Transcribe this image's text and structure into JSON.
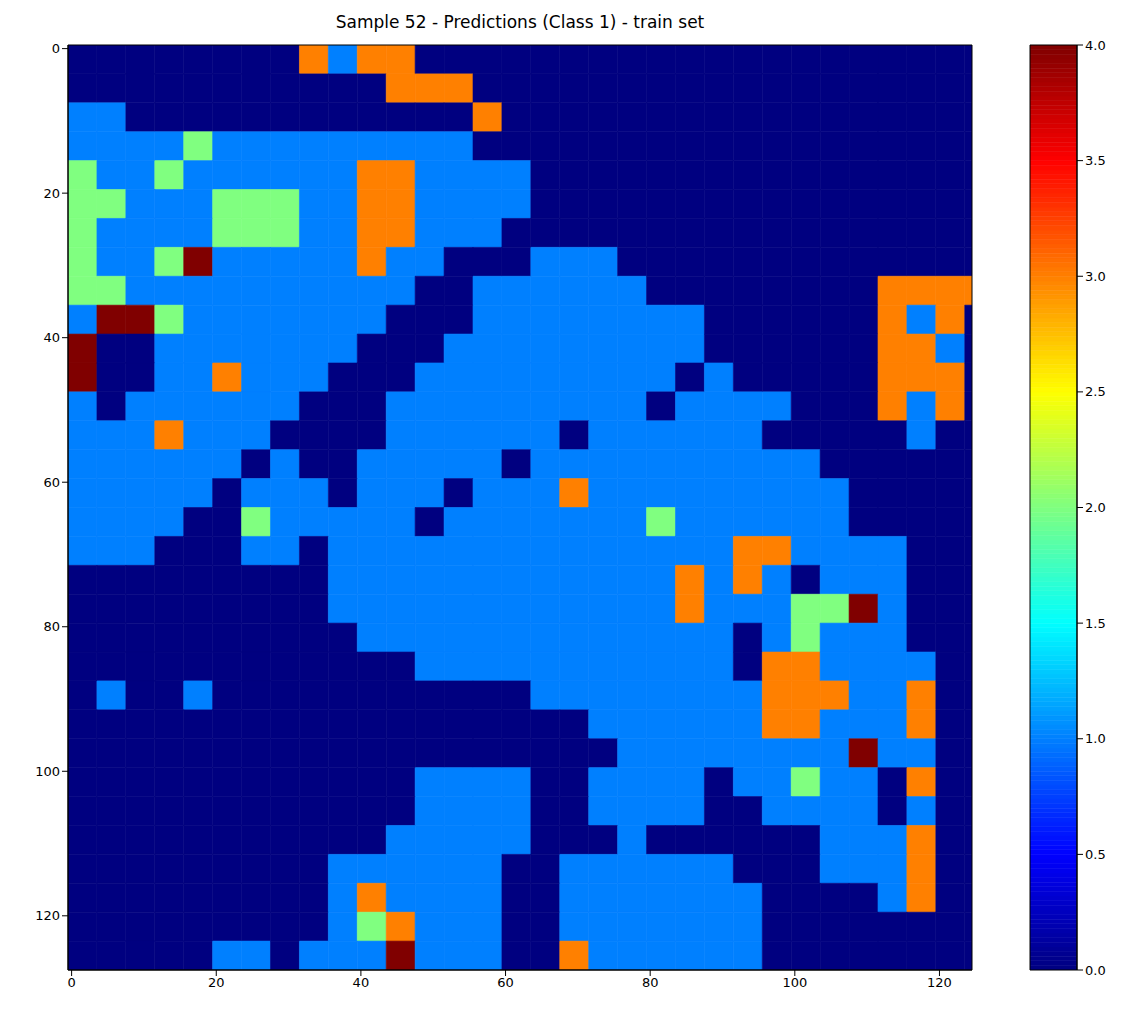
{
  "chart_data": {
    "type": "heatmap",
    "title": "Sample 52 - Predictions (Class 1) - train set",
    "x": [
      0,
      4,
      8,
      12,
      16,
      20,
      24,
      28,
      32,
      36,
      40,
      44,
      48,
      52,
      56,
      60,
      64,
      68,
      72,
      76,
      80,
      84,
      88,
      92,
      96,
      100,
      104,
      108,
      112,
      116,
      120,
      124
    ],
    "y": [
      0,
      4,
      8,
      12,
      16,
      20,
      24,
      28,
      32,
      36,
      40,
      44,
      48,
      52,
      56,
      60,
      64,
      68,
      72,
      76,
      80,
      84,
      88,
      92,
      96,
      100,
      104,
      108,
      112,
      116,
      120,
      124
    ],
    "xlim": [
      -0.5,
      124.5
    ],
    "ylim": [
      127.5,
      -0.5
    ],
    "xticks": [
      0,
      20,
      40,
      60,
      80,
      100,
      120
    ],
    "yticks": [
      0,
      20,
      40,
      60,
      80,
      100,
      120
    ],
    "cells": [
      [
        0,
        0,
        0,
        0,
        0,
        0,
        0,
        0,
        3,
        1,
        3,
        3,
        0,
        0,
        0,
        0,
        0,
        0,
        0,
        0,
        0,
        0,
        0,
        0,
        0,
        0,
        0,
        0,
        0,
        0,
        0,
        0
      ],
      [
        0,
        0,
        0,
        0,
        0,
        0,
        0,
        0,
        0,
        0,
        0,
        3,
        3,
        3,
        0,
        0,
        0,
        0,
        0,
        0,
        0,
        0,
        0,
        0,
        0,
        0,
        0,
        0,
        0,
        0,
        0,
        0
      ],
      [
        1,
        1,
        0,
        0,
        0,
        0,
        0,
        0,
        0,
        0,
        0,
        0,
        0,
        0,
        3,
        0,
        0,
        0,
        0,
        0,
        0,
        0,
        0,
        0,
        0,
        0,
        0,
        0,
        0,
        0,
        0,
        0
      ],
      [
        1,
        1,
        1,
        1,
        2,
        1,
        1,
        1,
        1,
        1,
        1,
        1,
        1,
        1,
        0,
        0,
        0,
        0,
        0,
        0,
        0,
        0,
        0,
        0,
        0,
        0,
        0,
        0,
        0,
        0,
        0,
        0
      ],
      [
        2,
        1,
        1,
        2,
        1,
        1,
        1,
        1,
        1,
        1,
        3,
        3,
        1,
        1,
        1,
        1,
        0,
        0,
        0,
        0,
        0,
        0,
        0,
        0,
        0,
        0,
        0,
        0,
        0,
        0,
        0,
        0
      ],
      [
        2,
        2,
        1,
        1,
        1,
        2,
        2,
        2,
        1,
        1,
        3,
        3,
        1,
        1,
        1,
        1,
        0,
        0,
        0,
        0,
        0,
        0,
        0,
        0,
        0,
        0,
        0,
        0,
        0,
        0,
        0,
        0
      ],
      [
        2,
        1,
        1,
        1,
        1,
        2,
        2,
        2,
        1,
        1,
        3,
        3,
        1,
        1,
        1,
        0,
        0,
        0,
        0,
        0,
        0,
        0,
        0,
        0,
        0,
        0,
        0,
        0,
        0,
        0,
        0,
        0
      ],
      [
        2,
        1,
        1,
        2,
        4,
        1,
        1,
        1,
        1,
        1,
        3,
        1,
        1,
        0,
        0,
        0,
        1,
        1,
        1,
        0,
        0,
        0,
        0,
        0,
        0,
        0,
        0,
        0,
        0,
        0,
        0,
        0
      ],
      [
        2,
        2,
        1,
        1,
        1,
        1,
        1,
        1,
        1,
        1,
        1,
        1,
        0,
        0,
        1,
        1,
        1,
        1,
        1,
        1,
        0,
        0,
        0,
        0,
        0,
        0,
        0,
        0,
        3,
        3,
        3,
        3
      ],
      [
        1,
        4,
        4,
        2,
        1,
        1,
        1,
        1,
        1,
        1,
        1,
        0,
        0,
        0,
        1,
        1,
        1,
        1,
        1,
        1,
        1,
        1,
        0,
        0,
        0,
        0,
        0,
        0,
        3,
        1,
        3,
        0
      ],
      [
        4,
        0,
        0,
        1,
        1,
        1,
        1,
        1,
        1,
        1,
        0,
        0,
        0,
        1,
        1,
        1,
        1,
        1,
        1,
        1,
        1,
        1,
        0,
        0,
        0,
        0,
        0,
        0,
        3,
        3,
        1,
        0
      ],
      [
        4,
        0,
        0,
        1,
        1,
        3,
        1,
        1,
        1,
        0,
        0,
        0,
        1,
        1,
        1,
        1,
        1,
        1,
        1,
        1,
        1,
        0,
        1,
        0,
        0,
        0,
        0,
        0,
        3,
        3,
        3,
        0
      ],
      [
        1,
        0,
        1,
        1,
        1,
        1,
        1,
        1,
        0,
        0,
        0,
        1,
        1,
        1,
        1,
        1,
        1,
        1,
        1,
        1,
        0,
        1,
        1,
        1,
        1,
        0,
        0,
        0,
        3,
        1,
        3,
        0
      ],
      [
        1,
        1,
        1,
        3,
        1,
        1,
        1,
        0,
        0,
        0,
        0,
        1,
        1,
        1,
        1,
        1,
        1,
        0,
        1,
        1,
        1,
        1,
        1,
        1,
        0,
        0,
        0,
        0,
        0,
        1,
        0,
        0
      ],
      [
        1,
        1,
        1,
        1,
        1,
        1,
        0,
        1,
        0,
        0,
        1,
        1,
        1,
        1,
        1,
        0,
        1,
        1,
        1,
        1,
        1,
        1,
        1,
        1,
        1,
        1,
        0,
        0,
        0,
        0,
        0,
        0
      ],
      [
        1,
        1,
        1,
        1,
        1,
        0,
        1,
        1,
        1,
        0,
        1,
        1,
        1,
        0,
        1,
        1,
        1,
        3,
        1,
        1,
        1,
        1,
        1,
        1,
        1,
        1,
        1,
        0,
        0,
        0,
        0,
        0
      ],
      [
        1,
        1,
        1,
        1,
        0,
        0,
        2,
        1,
        1,
        1,
        1,
        1,
        0,
        1,
        1,
        1,
        1,
        1,
        1,
        1,
        2,
        1,
        1,
        1,
        1,
        1,
        1,
        0,
        0,
        0,
        0,
        0
      ],
      [
        1,
        1,
        1,
        0,
        0,
        0,
        1,
        1,
        0,
        1,
        1,
        1,
        1,
        1,
        1,
        1,
        1,
        1,
        1,
        1,
        1,
        1,
        1,
        3,
        3,
        1,
        1,
        1,
        1,
        0,
        0,
        0
      ],
      [
        0,
        0,
        0,
        0,
        0,
        0,
        0,
        0,
        0,
        1,
        1,
        1,
        1,
        1,
        1,
        1,
        1,
        1,
        1,
        1,
        1,
        3,
        1,
        3,
        1,
        0,
        1,
        1,
        1,
        0,
        0,
        0
      ],
      [
        0,
        0,
        0,
        0,
        0,
        0,
        0,
        0,
        0,
        1,
        1,
        1,
        1,
        1,
        1,
        1,
        1,
        1,
        1,
        1,
        1,
        3,
        1,
        1,
        1,
        2,
        2,
        4,
        1,
        0,
        0,
        0
      ],
      [
        0,
        0,
        0,
        0,
        0,
        0,
        0,
        0,
        0,
        0,
        1,
        1,
        1,
        1,
        1,
        1,
        1,
        1,
        1,
        1,
        1,
        1,
        1,
        0,
        1,
        2,
        1,
        1,
        1,
        0,
        0,
        0
      ],
      [
        0,
        0,
        0,
        0,
        0,
        0,
        0,
        0,
        0,
        0,
        0,
        0,
        1,
        1,
        1,
        1,
        1,
        1,
        1,
        1,
        1,
        1,
        1,
        0,
        3,
        3,
        1,
        1,
        1,
        1,
        0,
        0
      ],
      [
        0,
        1,
        0,
        0,
        1,
        0,
        0,
        0,
        0,
        0,
        0,
        0,
        0,
        0,
        0,
        0,
        1,
        1,
        1,
        1,
        1,
        1,
        1,
        1,
        3,
        3,
        3,
        1,
        1,
        3,
        0,
        0
      ],
      [
        0,
        0,
        0,
        0,
        0,
        0,
        0,
        0,
        0,
        0,
        0,
        0,
        0,
        0,
        0,
        0,
        0,
        0,
        1,
        1,
        1,
        1,
        1,
        1,
        3,
        3,
        1,
        1,
        1,
        3,
        0,
        0
      ],
      [
        0,
        0,
        0,
        0,
        0,
        0,
        0,
        0,
        0,
        0,
        0,
        0,
        0,
        0,
        0,
        0,
        0,
        0,
        0,
        1,
        1,
        1,
        1,
        1,
        1,
        1,
        1,
        4,
        1,
        1,
        0,
        0
      ],
      [
        0,
        0,
        0,
        0,
        0,
        0,
        0,
        0,
        0,
        0,
        0,
        0,
        1,
        1,
        1,
        1,
        0,
        0,
        1,
        1,
        1,
        1,
        0,
        1,
        1,
        2,
        1,
        1,
        0,
        3,
        0,
        0
      ],
      [
        0,
        0,
        0,
        0,
        0,
        0,
        0,
        0,
        0,
        0,
        0,
        0,
        1,
        1,
        1,
        1,
        0,
        0,
        1,
        1,
        1,
        1,
        0,
        0,
        1,
        1,
        1,
        1,
        0,
        1,
        0,
        0
      ],
      [
        0,
        0,
        0,
        0,
        0,
        0,
        0,
        0,
        0,
        0,
        0,
        1,
        1,
        1,
        1,
        1,
        0,
        0,
        0,
        1,
        0,
        0,
        0,
        0,
        0,
        0,
        1,
        1,
        1,
        3,
        0,
        0
      ],
      [
        0,
        0,
        0,
        0,
        0,
        0,
        0,
        0,
        0,
        1,
        1,
        1,
        1,
        1,
        1,
        0,
        0,
        1,
        1,
        1,
        1,
        1,
        1,
        0,
        0,
        0,
        1,
        1,
        1,
        3,
        0,
        0
      ],
      [
        0,
        0,
        0,
        0,
        0,
        0,
        0,
        0,
        0,
        1,
        3,
        1,
        1,
        1,
        1,
        0,
        0,
        1,
        1,
        1,
        1,
        1,
        1,
        1,
        0,
        0,
        0,
        0,
        1,
        3,
        0,
        0
      ],
      [
        0,
        0,
        0,
        0,
        0,
        0,
        0,
        0,
        0,
        1,
        2,
        3,
        1,
        1,
        1,
        0,
        0,
        1,
        1,
        1,
        1,
        1,
        1,
        1,
        0,
        0,
        0,
        0,
        0,
        0,
        0,
        0
      ],
      [
        0,
        0,
        0,
        0,
        0,
        1,
        1,
        0,
        1,
        1,
        1,
        4,
        1,
        1,
        1,
        0,
        0,
        3,
        1,
        1,
        1,
        1,
        1,
        1,
        0,
        0,
        0,
        0,
        0,
        0,
        0,
        0
      ]
    ],
    "colorbar": {
      "range": [
        0,
        4
      ],
      "ticks": [
        {
          "value": 0,
          "label": "0.0"
        },
        {
          "value": 0.5,
          "label": "0.5"
        },
        {
          "value": 1,
          "label": "1.0"
        },
        {
          "value": 1.5,
          "label": "1.5"
        },
        {
          "value": 2,
          "label": "2.0"
        },
        {
          "value": 2.5,
          "label": "2.5"
        },
        {
          "value": 3,
          "label": "3.0"
        },
        {
          "value": 3.5,
          "label": "3.5"
        },
        {
          "value": 4,
          "label": "4.0"
        }
      ]
    }
  }
}
